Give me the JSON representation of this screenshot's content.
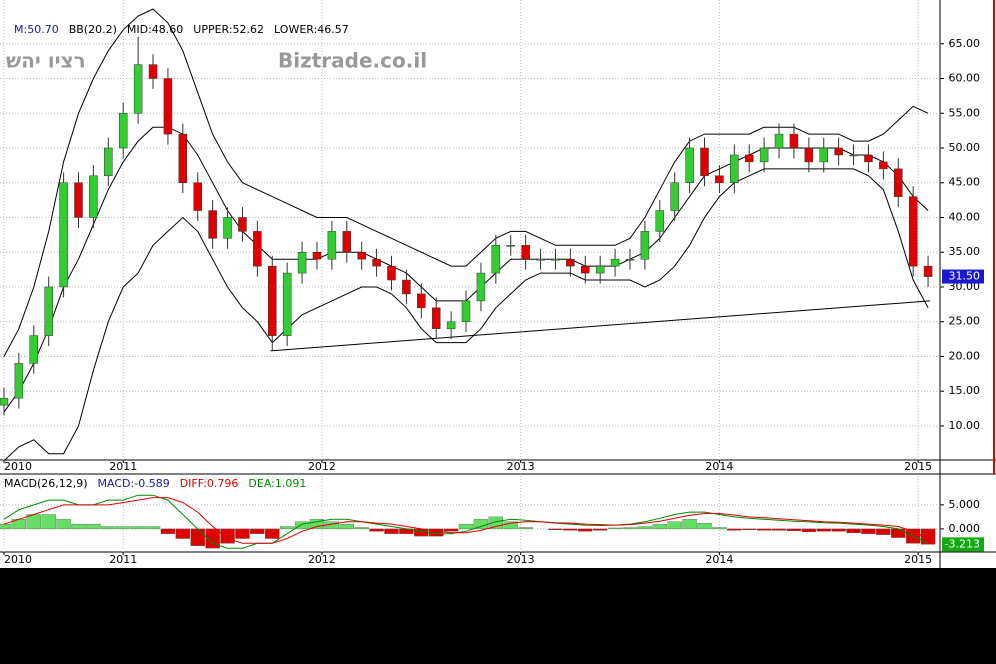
{
  "chart_data": [
    {
      "type": "candlestick",
      "header": [
        {
          "text": "M:50.70",
          "color": "#1a1aa6"
        },
        {
          "text": "BB(20.2)",
          "color": "#000000"
        },
        {
          "text": "MID:48.60",
          "color": "#000000"
        },
        {
          "text": "UPPER:52.62",
          "color": "#000000"
        },
        {
          "text": "LOWER:46.57",
          "color": "#000000"
        }
      ],
      "watermark": [
        "רציו יהש",
        "Biztrade.co.il"
      ],
      "x": [
        2010.4,
        2010.475,
        2010.55,
        2010.625,
        2010.7,
        2010.775,
        2010.85,
        2010.925,
        2011,
        2011.075,
        2011.15,
        2011.225,
        2011.3,
        2011.375,
        2011.45,
        2011.525,
        2011.6,
        2011.675,
        2011.75,
        2011.825,
        2011.9,
        2011.975,
        2012.05,
        2012.125,
        2012.2,
        2012.275,
        2012.35,
        2012.425,
        2012.5,
        2012.575,
        2012.65,
        2012.725,
        2012.8,
        2012.875,
        2012.95,
        2013.025,
        2013.1,
        2013.175,
        2013.25,
        2013.325,
        2013.4,
        2013.475,
        2013.55,
        2013.625,
        2013.7,
        2013.775,
        2013.85,
        2013.925,
        2014,
        2014.075,
        2014.15,
        2014.225,
        2014.3,
        2014.375,
        2014.45,
        2014.525,
        2014.6,
        2014.675,
        2014.75,
        2014.825,
        2014.9,
        2014.975,
        2015.05
      ],
      "open": [
        13,
        14,
        19,
        23,
        30,
        45,
        40,
        46,
        50,
        55,
        62,
        60,
        52,
        45,
        41,
        37,
        40,
        38,
        33,
        23,
        32,
        35,
        34,
        38,
        35,
        34,
        33,
        31,
        29,
        27,
        24,
        25,
        28,
        32,
        36,
        36,
        34,
        34,
        34,
        33,
        32,
        33,
        34,
        34,
        38,
        41,
        45,
        50,
        46,
        45,
        49,
        48,
        50,
        52,
        50,
        48,
        50,
        49,
        49,
        48,
        47,
        43,
        33
      ],
      "high": [
        15.5,
        20.5,
        24.5,
        31.5,
        46.5,
        46.5,
        47.5,
        51.5,
        56.5,
        66,
        63.5,
        61.5,
        53.5,
        46.5,
        42.5,
        41.5,
        41.5,
        39.5,
        34.5,
        33.5,
        36.5,
        36.5,
        39.5,
        39.5,
        36.5,
        35.5,
        34.5,
        32.5,
        30.5,
        28.5,
        26.5,
        29.5,
        33.5,
        37.5,
        37.5,
        37.5,
        35.5,
        35.5,
        35.5,
        34.5,
        34.5,
        35.5,
        35.5,
        39.5,
        42.5,
        46.5,
        51.5,
        51.5,
        47.5,
        50.5,
        50.5,
        51.5,
        53.5,
        53.5,
        51.5,
        51.5,
        51.5,
        50.5,
        50.5,
        49.5,
        48.5,
        44.5,
        34.5
      ],
      "low": [
        11.5,
        12.5,
        17.5,
        21.5,
        28.5,
        38.5,
        38.5,
        44.5,
        48.5,
        53.5,
        58.5,
        50.5,
        43.5,
        39.5,
        35.5,
        35.5,
        36.5,
        31.5,
        20.8,
        21.5,
        30.5,
        32.5,
        32.5,
        33.5,
        32.5,
        31.5,
        29.5,
        27.5,
        25.5,
        22.5,
        22.5,
        23.5,
        26.5,
        30.5,
        34.5,
        32.5,
        32.5,
        32.5,
        31.5,
        30.5,
        30.5,
        31.5,
        32.5,
        32.5,
        36.5,
        39.5,
        43.5,
        44.5,
        43.5,
        43.5,
        46.5,
        46.5,
        48.5,
        48.5,
        46.5,
        46.5,
        47.5,
        47.5,
        46.5,
        45.5,
        41.5,
        31.5,
        30
      ],
      "close": [
        14,
        19,
        23,
        30,
        45,
        40,
        46,
        50,
        55,
        62,
        60,
        52,
        45,
        41,
        37,
        40,
        38,
        33,
        23,
        32,
        35,
        34,
        38,
        35,
        34,
        33,
        31,
        29,
        27,
        24,
        25,
        28,
        32,
        36,
        36,
        34,
        34,
        34,
        33,
        32,
        33,
        34,
        34,
        38,
        41,
        45,
        50,
        46,
        45,
        49,
        48,
        50,
        52,
        50,
        48,
        50,
        49,
        49,
        48,
        47,
        43,
        33,
        31.5
      ],
      "up_color": "#33cc33",
      "down_color": "#e00000",
      "series": [
        {
          "color": "#000000",
          "values": [
            20,
            24,
            30,
            38,
            48,
            55,
            60,
            64,
            67,
            69,
            70,
            68,
            64,
            58,
            52,
            48,
            45,
            44,
            43,
            42,
            41,
            40,
            40,
            40,
            39,
            38,
            37,
            36,
            35,
            34,
            33,
            33,
            35,
            37,
            38,
            38,
            37,
            36,
            36,
            36,
            36,
            36,
            37,
            40,
            44,
            48,
            51,
            52,
            52,
            52,
            52,
            53,
            53,
            53,
            52,
            52,
            52,
            51,
            51,
            52,
            54,
            56,
            55
          ]
        },
        {
          "color": "#000000",
          "values": [
            12,
            15,
            19,
            24,
            30,
            34,
            39,
            44,
            48,
            51,
            53,
            53,
            52,
            49,
            45,
            41,
            38,
            36,
            34,
            34,
            34,
            34,
            35,
            35,
            35,
            34,
            33,
            32,
            30,
            28,
            28,
            28,
            30,
            32,
            34,
            34,
            34,
            34,
            34,
            33,
            33,
            33,
            34,
            35,
            37,
            40,
            43,
            46,
            47,
            48,
            49,
            50,
            50,
            50,
            50,
            50,
            50,
            49,
            49,
            48,
            46,
            43,
            41
          ]
        },
        {
          "color": "#000000",
          "values": [
            5,
            7,
            8,
            6,
            6,
            10,
            18,
            25,
            30,
            32,
            36,
            38,
            40,
            38,
            34,
            30,
            27,
            25,
            22,
            24,
            26,
            27,
            28,
            29,
            30,
            30,
            29,
            27,
            24,
            22,
            22,
            22,
            24,
            27,
            29,
            31,
            32,
            32,
            32,
            31,
            31,
            31,
            31,
            30,
            31,
            33,
            36,
            40,
            43,
            45,
            46,
            47,
            47,
            47,
            47,
            47,
            47,
            47,
            46,
            44,
            38,
            31,
            27
          ]
        }
      ],
      "trendline": {
        "x": [
          2011.74,
          2015.06
        ],
        "y": [
          20.8,
          28
        ]
      },
      "last_label": {
        "value": 31.5,
        "label": "31.50"
      },
      "xlim": [
        2010.38,
        2015.11
      ],
      "xticks": [
        {
          "value": 2010.4,
          "label": "2010"
        },
        2011,
        2012,
        2013,
        2014,
        2015
      ],
      "ylim": [
        5.1,
        71.3
      ],
      "yticks": [
        {
          "value": 10,
          "label": "10.00"
        },
        {
          "value": 15,
          "label": "15.00"
        },
        {
          "value": 20,
          "label": "20.00"
        },
        {
          "value": 25,
          "label": "25.00"
        },
        {
          "value": 30,
          "label": "30.00"
        },
        {
          "value": 35,
          "label": "35.00"
        },
        {
          "value": 40,
          "label": "40.00"
        },
        {
          "value": 45,
          "label": "45.00"
        },
        {
          "value": 50,
          "label": "50.00"
        },
        {
          "value": 55,
          "label": "55.00"
        },
        {
          "value": 60,
          "label": "60.00"
        },
        {
          "value": 65,
          "label": "65.00"
        }
      ],
      "grid": true
    },
    {
      "type": "macd",
      "header": [
        {
          "text": "MACD(26,12,9)",
          "color": "#000000"
        },
        {
          "text": "MACD:-0.589",
          "color": "#1a1aa6"
        },
        {
          "text": "DIFF:0.796",
          "color": "#e00000"
        },
        {
          "text": "DEA:1.091",
          "color": "#008800"
        }
      ],
      "histogram": [
        1,
        2,
        3,
        3,
        2,
        1,
        1,
        0.5,
        0.5,
        0.5,
        0.5,
        -1,
        -2,
        -3.5,
        -4,
        -3,
        -2,
        -1,
        -2,
        0.5,
        1.5,
        2,
        1.5,
        1,
        0.3,
        -0.5,
        -1,
        -1,
        -1.5,
        -1.5,
        -0.5,
        1,
        2,
        2.5,
        1.5,
        0.3,
        0,
        -0.2,
        -0.3,
        -0.5,
        -0.3,
        0.2,
        0.3,
        0.5,
        1,
        1.5,
        2,
        1.2,
        0.3,
        -0.3,
        -0.2,
        -0.3,
        -0.3,
        -0.4,
        -0.6,
        -0.5,
        -0.5,
        -0.8,
        -1,
        -1.2,
        -1.8,
        -3,
        -3.2
      ],
      "up_color": "#66dd66",
      "down_color": "#dd0000",
      "series": [
        {
          "color": "#008800",
          "values": [
            2,
            4,
            5,
            6,
            6,
            5,
            5,
            6,
            6,
            7,
            7,
            6,
            3,
            0,
            -3,
            -4,
            -4,
            -3,
            -3,
            -1,
            1,
            1.5,
            2,
            2,
            1.5,
            1,
            0.5,
            0,
            -0.5,
            -1,
            -1,
            -0.5,
            0.5,
            1.5,
            2,
            1.8,
            1.5,
            1.2,
            1,
            0.8,
            0.7,
            0.8,
            1,
            1.5,
            2.2,
            3,
            3.5,
            3.5,
            3,
            2.5,
            2.2,
            2,
            1.8,
            1.6,
            1.5,
            1.3,
            1.2,
            1,
            0.8,
            0.5,
            0,
            -1.5,
            -3
          ]
        },
        {
          "color": "#e00000",
          "values": [
            1,
            2,
            3,
            4,
            5,
            5,
            5,
            5,
            5.5,
            6,
            6.5,
            6.5,
            5.5,
            3.5,
            0.5,
            -2,
            -3,
            -3,
            -3,
            -2,
            -0.5,
            0.5,
            1,
            1.5,
            1.5,
            1.2,
            1,
            0.5,
            0,
            -0.5,
            -0.8,
            -0.8,
            -0.3,
            0.5,
            1.2,
            1.5,
            1.5,
            1.3,
            1.2,
            1,
            0.9,
            0.8,
            0.9,
            1.2,
            1.6,
            2.2,
            2.8,
            3.2,
            3.2,
            2.9,
            2.5,
            2.3,
            2.1,
            1.9,
            1.7,
            1.5,
            1.4,
            1.2,
            1,
            0.8,
            0.5,
            -0.5,
            -2
          ]
        }
      ],
      "last_label": {
        "value": -3.213,
        "label": "-3.213"
      },
      "xlim": [
        2010.38,
        2015.11
      ],
      "xticks": [
        {
          "value": 2010.4,
          "label": "2010"
        },
        2011,
        2012,
        2013,
        2014,
        2015
      ],
      "ylim": [
        -4.8,
        11.0
      ],
      "yticks": [
        {
          "value": 5,
          "label": "5.000"
        },
        {
          "value": 0,
          "label": "0.000"
        }
      ],
      "grid": true
    }
  ]
}
